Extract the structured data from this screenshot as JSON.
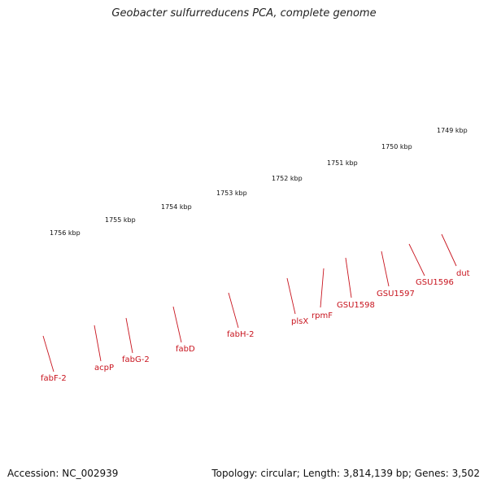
{
  "title": "Geobacter sulfurreducens PCA, complete genome",
  "footer": {
    "accession": "Accession: NC_002939",
    "summary": "Topology: circular; Length: 3,814,139 bp; Genes: 3,502"
  },
  "scale_labels": [
    "1749 kbp",
    "1750 kbp",
    "1751 kbp",
    "1752 kbp",
    "1753 kbp",
    "1754 kbp",
    "1755 kbp",
    "1756 kbp"
  ],
  "gene_labels": [
    "dut",
    "GSU1596",
    "GSU1597",
    "GSU1598",
    "rpmF",
    "plsX",
    "fabH-2",
    "fabD",
    "fabG-2",
    "acpP",
    "fabF-2"
  ],
  "colors": {
    "forward_cds": "#e8101a",
    "reverse_cds": "#e8101a",
    "cog_lipid": "#6a5acd",
    "cog_lipid_dark": "#000080",
    "cog_cyan": "#00c0f0",
    "cog_gray": "#b8b8b8",
    "cog_pink": "#f08080",
    "backbone": "#808080",
    "tick": "#1a7a1a",
    "label": "#c8141e"
  }
}
